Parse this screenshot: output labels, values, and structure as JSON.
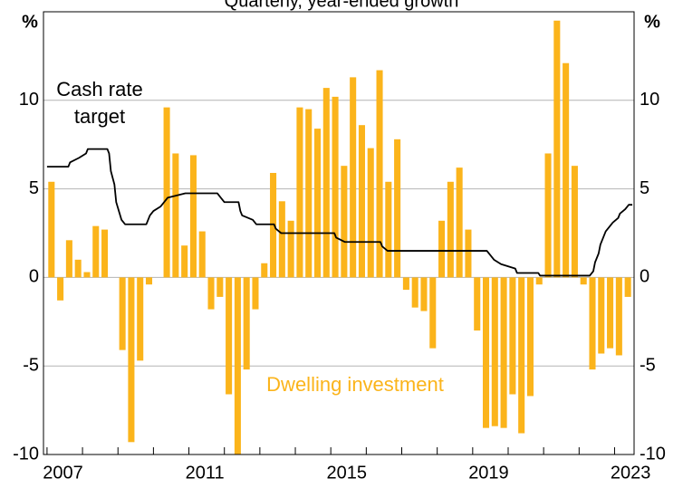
{
  "chart_data": {
    "type": "bar",
    "subtitle": "Quarterly, year-ended growth",
    "y_unit_label": "%",
    "y2_unit_label": "%",
    "xlim": [
      2006.9,
      2023.55
    ],
    "ylim": [
      -10,
      15
    ],
    "y2lim": [
      -10,
      15
    ],
    "yticks": [
      -10,
      -5,
      0,
      5,
      10
    ],
    "y2ticks": [
      -10,
      -5,
      0,
      5,
      10
    ],
    "xticks": [
      2007,
      2008,
      2009,
      2010,
      2011,
      2012,
      2013,
      2014,
      2015,
      2016,
      2017,
      2018,
      2019,
      2020,
      2021,
      2022,
      2023
    ],
    "xtick_labels": [
      {
        "value": 2007,
        "label": "2007"
      },
      {
        "value": 2011,
        "label": "2011"
      },
      {
        "value": 2015,
        "label": "2015"
      },
      {
        "value": 2019,
        "label": "2019"
      },
      {
        "value": 2023,
        "label": "2023"
      }
    ],
    "grid": true,
    "series": [
      {
        "type": "bar",
        "color": "#fbb41b",
        "x": [
          2007,
          2007.25,
          2007.5,
          2007.75,
          2008,
          2008.25,
          2008.5,
          2008.75,
          2009,
          2009.25,
          2009.5,
          2009.75,
          2010,
          2010.25,
          2010.5,
          2010.75,
          2011,
          2011.25,
          2011.5,
          2011.75,
          2012,
          2012.25,
          2012.5,
          2012.75,
          2013,
          2013.25,
          2013.5,
          2013.75,
          2014,
          2014.25,
          2014.5,
          2014.75,
          2015,
          2015.25,
          2015.5,
          2015.75,
          2016,
          2016.25,
          2016.5,
          2016.75,
          2017,
          2017.25,
          2017.5,
          2017.75,
          2018,
          2018.25,
          2018.5,
          2018.75,
          2019,
          2019.25,
          2019.5,
          2019.75,
          2020,
          2020.25,
          2020.5,
          2020.75,
          2021,
          2021.25,
          2021.5,
          2021.75,
          2022,
          2022.25,
          2022.5,
          2022.75,
          2023,
          2023.25
        ],
        "values": [
          5.4,
          -1.3,
          2.1,
          1.0,
          0.3,
          2.9,
          2.7,
          0,
          -4.1,
          -9.3,
          -4.7,
          -0.4,
          0,
          9.6,
          7.0,
          1.8,
          6.9,
          2.6,
          -1.8,
          -1.1,
          -6.6,
          -10,
          -5.2,
          -1.8,
          0.8,
          5.9,
          4.3,
          3.2,
          9.6,
          9.5,
          8.4,
          10.7,
          10.2,
          6.3,
          11.3,
          8.6,
          7.3,
          11.7,
          5.4,
          7.8,
          -0.7,
          -1.7,
          -1.9,
          -4.0,
          3.2,
          5.4,
          6.2,
          2.7,
          -3.0,
          -8.5,
          -8.4,
          -8.5,
          -6.6,
          -8.8,
          -6.7,
          -0.4,
          7.0,
          14.5,
          12.1,
          6.3,
          -0.4,
          -5.2,
          -4.3,
          -4.0,
          -4.4,
          -1.1
        ]
      },
      {
        "type": "line",
        "axis": "y2",
        "color": "#000000",
        "x": [
          2007.0,
          2007.6,
          2007.65,
          2007.9,
          2008.1,
          2008.15,
          2008.7,
          2008.75,
          2008.8,
          2008.9,
          2008.95,
          2009.1,
          2009.2,
          2009.8,
          2009.85,
          2009.9,
          2010.0,
          2010.2,
          2010.3,
          2010.4,
          2010.9,
          2011.8,
          2011.9,
          2012.0,
          2012.4,
          2012.45,
          2012.5,
          2012.8,
          2012.9,
          2013.4,
          2013.45,
          2013.6,
          2015.1,
          2015.15,
          2015.4,
          2016.4,
          2016.45,
          2016.6,
          2019.4,
          2019.5,
          2019.6,
          2019.8,
          2020.2,
          2020.25,
          2020.85,
          2020.9,
          2022.3,
          2022.4,
          2022.45,
          2022.55,
          2022.6,
          2022.7,
          2022.75,
          2022.85,
          2022.95,
          2023.1,
          2023.15,
          2023.3,
          2023.4,
          2023.5
        ],
        "values": [
          6.25,
          6.25,
          6.5,
          6.75,
          7.0,
          7.25,
          7.25,
          7.0,
          6.0,
          5.25,
          4.25,
          3.25,
          3.0,
          3.0,
          3.25,
          3.5,
          3.75,
          4.0,
          4.25,
          4.5,
          4.75,
          4.75,
          4.5,
          4.25,
          4.25,
          3.75,
          3.5,
          3.25,
          3.0,
          3.0,
          2.75,
          2.5,
          2.5,
          2.25,
          2.0,
          2.0,
          1.75,
          1.5,
          1.5,
          1.25,
          1.0,
          0.75,
          0.5,
          0.25,
          0.25,
          0.1,
          0.1,
          0.35,
          0.85,
          1.35,
          1.85,
          2.35,
          2.6,
          2.85,
          3.1,
          3.35,
          3.6,
          3.85,
          4.1,
          4.1
        ]
      }
    ],
    "annotations": [
      {
        "text": "Cash rate",
        "color": "#000000"
      },
      {
        "text": "target",
        "color": "#000000"
      },
      {
        "text": "Dwelling investment",
        "color": "#fbb41b"
      }
    ]
  }
}
